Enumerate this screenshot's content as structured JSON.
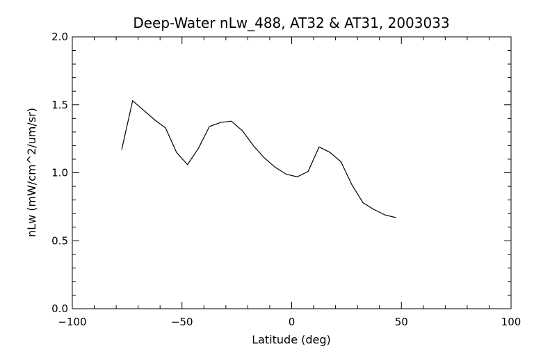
{
  "chart_data": {
    "type": "line",
    "title": "Deep-Water nLw_488, AT32 & AT31, 2003033",
    "xlabel": "Latitude (deg)",
    "ylabel": "nLw (mW/cm^2/um/sr)",
    "xlim": [
      -100,
      100
    ],
    "ylim": [
      0.0,
      2.0
    ],
    "xticks": [
      -100,
      -50,
      0,
      50,
      100
    ],
    "xtick_labels": [
      "−100",
      "−50",
      "0",
      "50",
      "100"
    ],
    "yticks": [
      0.0,
      0.5,
      1.0,
      1.5,
      2.0
    ],
    "ytick_labels": [
      "0.0",
      "0.5",
      "1.0",
      "1.5",
      "2.0"
    ],
    "x_minor_step": 10,
    "y_minor_step": 0.1,
    "grid": false,
    "series": [
      {
        "x": [
          -77.5,
          -72.5,
          -67.5,
          -62.5,
          -57.5,
          -52.5,
          -47.5,
          -42.5,
          -37.5,
          -32.5,
          -27.5,
          -22.5,
          -17.5,
          -12.5,
          -7.5,
          -2.5,
          2.5,
          7.5,
          12.5,
          17.5,
          22.5,
          27.5,
          32.5,
          37.5,
          42.5,
          47.5
        ],
        "y": [
          1.17,
          1.53,
          1.46,
          1.39,
          1.33,
          1.15,
          1.06,
          1.18,
          1.34,
          1.37,
          1.38,
          1.31,
          1.2,
          1.11,
          1.04,
          0.99,
          0.97,
          1.01,
          1.19,
          1.15,
          1.08,
          0.91,
          0.78,
          0.73,
          0.69,
          0.67
        ]
      }
    ]
  }
}
